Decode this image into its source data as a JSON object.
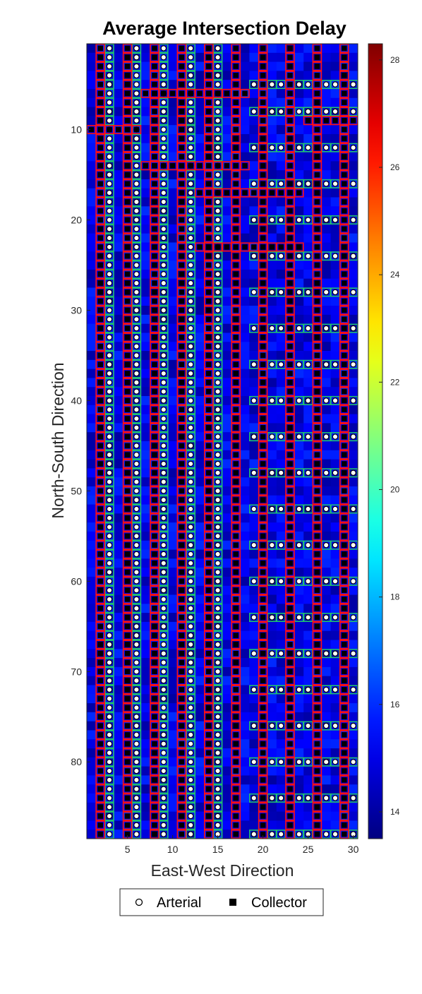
{
  "chart_data": {
    "type": "heatmap",
    "title": "Average Intersection Delay",
    "xlabel": "East-West Direction",
    "ylabel": "North-South Direction",
    "x_range": [
      1,
      30
    ],
    "y_range": [
      1,
      88
    ],
    "y_reversed": true,
    "x_ticks": [
      5,
      10,
      15,
      20,
      25,
      30
    ],
    "y_ticks": [
      10,
      20,
      30,
      40,
      50,
      60,
      70,
      80
    ],
    "colorbar": {
      "min": 13.5,
      "max": 28.3,
      "ticks": [
        14,
        16,
        18,
        20,
        22,
        24,
        26,
        28
      ],
      "colormap": "jet"
    },
    "delay_typical_range": [
      14,
      16
    ],
    "grid": false,
    "legend_position": "bottom",
    "legend": [
      {
        "label": "Arterial",
        "marker": "open-circle"
      },
      {
        "label": "Collector",
        "marker": "filled-square"
      }
    ],
    "collector_columns": [
      2,
      5,
      8,
      11,
      14,
      17,
      20,
      23,
      26,
      29
    ],
    "arterial_columns": [
      3,
      6,
      9,
      12,
      15
    ],
    "collector_rows_east_section": [
      5,
      8,
      12,
      16,
      20,
      24,
      28,
      32,
      36,
      40,
      44,
      48,
      52,
      56,
      60,
      64,
      68,
      72,
      76,
      80,
      84,
      88
    ],
    "east_section_x_range": [
      19,
      30
    ],
    "collector_horizontal_segments": [
      {
        "row": 6,
        "x_from": 7,
        "x_to": 18
      },
      {
        "row": 9,
        "x_from": 25,
        "x_to": 30
      },
      {
        "row": 10,
        "x_from": 1,
        "x_to": 6
      },
      {
        "row": 14,
        "x_from": 7,
        "x_to": 18
      },
      {
        "row": 17,
        "x_from": 13,
        "x_to": 24
      },
      {
        "row": 23,
        "x_from": 13,
        "x_to": 24
      }
    ],
    "edge_color_arterial": "#20c070",
    "edge_color_collector": "#ff1010"
  }
}
